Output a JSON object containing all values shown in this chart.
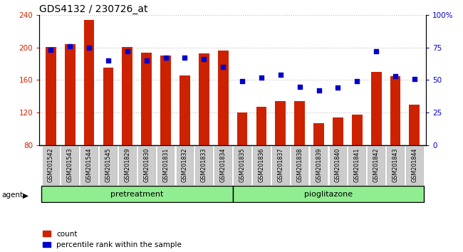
{
  "title": "GDS4132 / 230726_at",
  "samples": [
    "GSM201542",
    "GSM201543",
    "GSM201544",
    "GSM201545",
    "GSM201829",
    "GSM201830",
    "GSM201831",
    "GSM201832",
    "GSM201833",
    "GSM201834",
    "GSM201835",
    "GSM201836",
    "GSM201837",
    "GSM201838",
    "GSM201839",
    "GSM201840",
    "GSM201841",
    "GSM201842",
    "GSM201843",
    "GSM201844"
  ],
  "count_values": [
    201,
    204,
    234,
    175,
    201,
    194,
    190,
    166,
    193,
    196,
    120,
    127,
    134,
    134,
    107,
    114,
    117,
    170,
    165,
    130
  ],
  "percentile_values": [
    73,
    76,
    75,
    65,
    72,
    65,
    67,
    67,
    66,
    60,
    49,
    52,
    54,
    45,
    42,
    44,
    49,
    72,
    53,
    51
  ],
  "group_labels": [
    "pretreatment",
    "pioglitazone"
  ],
  "group_split": 10,
  "group_colors": [
    "#90ee90",
    "#90ee90"
  ],
  "bar_color": "#cc2200",
  "dot_color": "#0000cc",
  "ylim_left": [
    80,
    240
  ],
  "ylim_right": [
    0,
    100
  ],
  "yticks_left": [
    80,
    120,
    160,
    200,
    240
  ],
  "yticks_right": [
    0,
    25,
    50,
    75,
    100
  ],
  "yticklabels_right": [
    "0",
    "25",
    "50",
    "75",
    "100%"
  ],
  "xticklabel_bg": "#cccccc",
  "agent_label": "agent",
  "legend_count": "count",
  "legend_percentile": "percentile rank within the sample",
  "title_fontsize": 10,
  "tick_fontsize": 7.5,
  "bar_width": 0.55,
  "dot_size": 22,
  "gridline_color": "#000000",
  "gridline_alpha": 0.25,
  "gridline_style": ":"
}
